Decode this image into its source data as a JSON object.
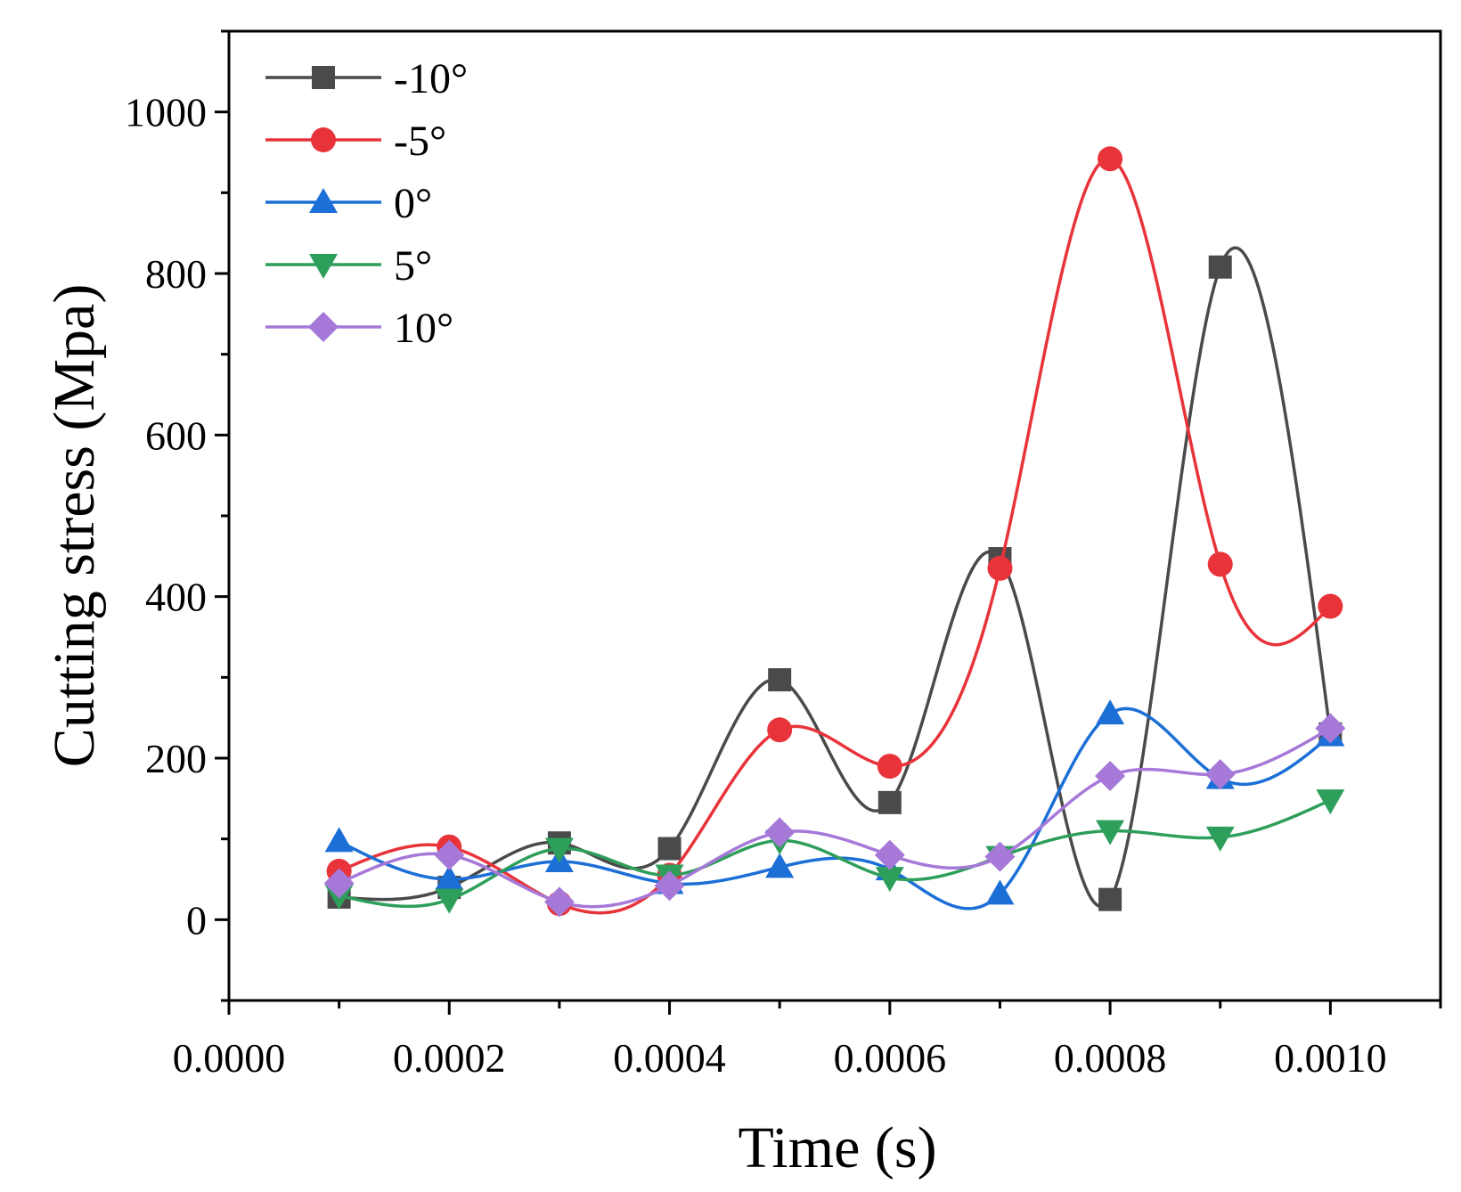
{
  "chart_data": {
    "type": "line",
    "title": "",
    "xlabel": "Time (s)",
    "ylabel": "Cutting stress (Mpa)",
    "xlim": [
      0,
      0.0011
    ],
    "ylim": [
      -100,
      1100
    ],
    "x_ticks": [
      "0.0000",
      "0.0002",
      "0.0004",
      "0.0006",
      "0.0008",
      "0.0010"
    ],
    "y_ticks": [
      "0",
      "200",
      "400",
      "600",
      "800",
      "1000"
    ],
    "legend_position": "top-left",
    "grid": false,
    "smooth": true,
    "x": [
      0.0001,
      0.0002,
      0.0003,
      0.0004,
      0.0005,
      0.0006,
      0.0007,
      0.0008,
      0.0009,
      0.001
    ],
    "series": [
      {
        "name": "-10°",
        "color": "#4a4a4a",
        "marker": "square",
        "values": [
          28,
          40,
          95,
          88,
          297,
          145,
          447,
          25,
          808,
          230
        ]
      },
      {
        "name": "-5°",
        "color": "#e8333a",
        "marker": "circle",
        "values": [
          60,
          90,
          20,
          55,
          235,
          190,
          435,
          942,
          440,
          388
        ]
      },
      {
        "name": "0°",
        "color": "#1c6fd6",
        "marker": "triangle-up",
        "values": [
          97,
          50,
          72,
          45,
          65,
          62,
          32,
          255,
          175,
          228
        ]
      },
      {
        "name": "5°",
        "color": "#2e9e5b",
        "marker": "triangle-down",
        "values": [
          30,
          25,
          88,
          55,
          98,
          52,
          78,
          110,
          102,
          148
        ]
      },
      {
        "name": "10°",
        "color": "#a678d8",
        "marker": "diamond",
        "values": [
          45,
          80,
          22,
          42,
          108,
          80,
          78,
          178,
          180,
          237
        ]
      }
    ]
  }
}
